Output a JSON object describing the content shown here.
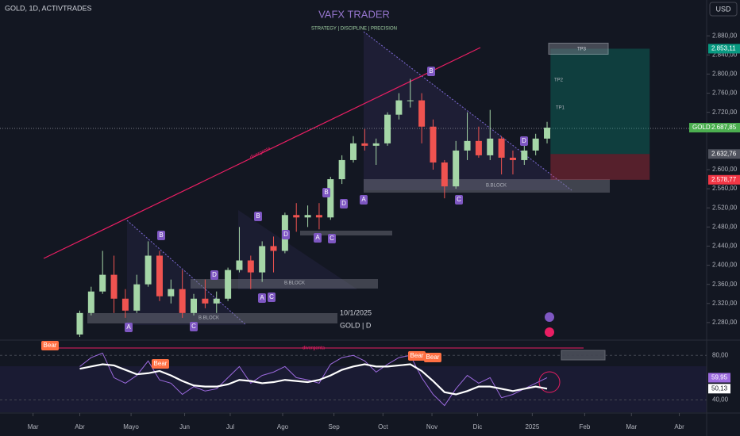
{
  "header": {
    "symbol": "GOLD, 1D, ACTIVTRADES",
    "title": "VAFX TRADER",
    "subtitle": "STRATEGY  |  DISCIPLINE  |  PRECISION",
    "currency": "USD"
  },
  "chart_data": {
    "type": "candlestick",
    "up_color": "#a5d6a7",
    "down_color": "#ef5350",
    "x": [
      0,
      1,
      2,
      3,
      4,
      5,
      6,
      7,
      8,
      9,
      10,
      11,
      12,
      13,
      14,
      15,
      16,
      17,
      18,
      19,
      20,
      21,
      22,
      23,
      24,
      25,
      26,
      27,
      28,
      29,
      30,
      31,
      32,
      33,
      34,
      35,
      36,
      37,
      38,
      39,
      40,
      41
    ],
    "open": [
      2255,
      2300,
      2345,
      2380,
      2330,
      2305,
      2360,
      2420,
      2335,
      2350,
      2300,
      2330,
      2320,
      2330,
      2390,
      2410,
      2385,
      2440,
      2430,
      2505,
      2500,
      2505,
      2500,
      2580,
      2620,
      2655,
      2650,
      2655,
      2715,
      2745,
      2745,
      2690,
      2615,
      2565,
      2640,
      2660,
      2630,
      2665,
      2625,
      2620,
      2640,
      2665
    ],
    "high": [
      2305,
      2355,
      2430,
      2420,
      2350,
      2380,
      2450,
      2430,
      2370,
      2390,
      2340,
      2370,
      2345,
      2395,
      2480,
      2420,
      2450,
      2460,
      2510,
      2530,
      2525,
      2530,
      2585,
      2630,
      2670,
      2685,
      2665,
      2720,
      2760,
      2790,
      2760,
      2705,
      2620,
      2660,
      2720,
      2690,
      2725,
      2670,
      2640,
      2665,
      2675,
      2700
    ],
    "low": [
      2250,
      2295,
      2340,
      2300,
      2290,
      2300,
      2355,
      2325,
      2320,
      2290,
      2295,
      2310,
      2300,
      2325,
      2385,
      2350,
      2365,
      2385,
      2425,
      2470,
      2480,
      2475,
      2495,
      2570,
      2615,
      2640,
      2610,
      2650,
      2705,
      2730,
      2655,
      2600,
      2540,
      2560,
      2620,
      2625,
      2620,
      2590,
      2590,
      2610,
      2630,
      2655
    ],
    "close": [
      2300,
      2345,
      2380,
      2330,
      2305,
      2360,
      2420,
      2335,
      2350,
      2300,
      2330,
      2320,
      2330,
      2390,
      2410,
      2385,
      2440,
      2430,
      2505,
      2500,
      2505,
      2500,
      2580,
      2620,
      2655,
      2650,
      2655,
      2715,
      2745,
      2745,
      2690,
      2615,
      2565,
      2640,
      2660,
      2630,
      2665,
      2625,
      2620,
      2640,
      2665,
      2687.85
    ],
    "xlim": [
      -7,
      55
    ],
    "xticks": [
      {
        "value": -4.1,
        "label": "Mar"
      },
      {
        "value": 0,
        "label": "Abr"
      },
      {
        "value": 4.5,
        "label": "Mayo"
      },
      {
        "value": 9.2,
        "label": "Jun"
      },
      {
        "value": 13.2,
        "label": "Jul"
      },
      {
        "value": 17.8,
        "label": "Ago"
      },
      {
        "value": 22.3,
        "label": "Sep"
      },
      {
        "value": 26.6,
        "label": "Oct"
      },
      {
        "value": 30.9,
        "label": "Nov"
      },
      {
        "value": 34.9,
        "label": "Dic"
      },
      {
        "value": 39.7,
        "label": "2025"
      },
      {
        "value": 44.3,
        "label": "Feb"
      },
      {
        "value": 48.4,
        "label": "Mar"
      },
      {
        "value": 52.6,
        "label": "Abr"
      }
    ],
    "ylim": [
      2245,
      2955
    ],
    "yticks": [
      {
        "value": 2880,
        "label": "2.880,00"
      },
      {
        "value": 2840,
        "label": "2.840,00"
      },
      {
        "value": 2800,
        "label": "2.800,00"
      },
      {
        "value": 2760,
        "label": "2.760,00"
      },
      {
        "value": 2720,
        "label": "2.720,00"
      },
      {
        "value": 2600,
        "label": "2.600,00"
      },
      {
        "value": 2560,
        "label": "2.560,00"
      },
      {
        "value": 2520,
        "label": "2.520,00"
      },
      {
        "value": 2480,
        "label": "2.480,00"
      },
      {
        "value": 2440,
        "label": "2.440,00"
      },
      {
        "value": 2400,
        "label": "2.400,00"
      },
      {
        "value": 2360,
        "label": "2.360,00"
      },
      {
        "value": 2320,
        "label": "2.320,00"
      },
      {
        "value": 2280,
        "label": "2.280,00"
      }
    ],
    "last": {
      "name": "GOLD",
      "value": 2687.85,
      "label": "2.687,85"
    },
    "position": {
      "target": 2853.11,
      "target_label": "2.853,11",
      "entry": 2632.76,
      "entry_label": "2.632,76",
      "stop": 2578.77,
      "stop_label": "2.578,77"
    },
    "annotations": [
      "A",
      "B",
      "C",
      "D",
      "A",
      "B",
      "C",
      "D",
      "A",
      "B",
      "C",
      "D",
      "A",
      "B",
      "C",
      "D"
    ],
    "notes": [
      "B.BLOCK",
      "B.BLOCK",
      "B.BLOCK",
      "TP1",
      "TP2",
      "TP3",
      "divergenta",
      "10/1/2025",
      "GOLD | D"
    ]
  },
  "oscillator": {
    "ylim": [
      29,
      93
    ],
    "yticks": [
      {
        "value": 80,
        "label": "80,00"
      },
      {
        "value": 40,
        "label": "40,00"
      }
    ],
    "series": [
      {
        "name": "RSI",
        "color": "#9c6ade",
        "values": [
          70,
          78,
          82,
          60,
          55,
          62,
          75,
          58,
          55,
          45,
          52,
          48,
          50,
          60,
          70,
          55,
          62,
          65,
          70,
          60,
          58,
          55,
          72,
          78,
          80,
          75,
          65,
          72,
          78,
          80,
          60,
          45,
          35,
          50,
          62,
          55,
          60,
          42,
          45,
          50,
          55,
          59.95
        ],
        "last_label": "59,95"
      },
      {
        "name": "MA",
        "color": "#ffffff",
        "values": [
          68,
          70,
          72,
          71,
          67,
          63,
          64,
          66,
          62,
          57,
          53,
          52,
          52,
          54,
          58,
          57,
          55,
          56,
          58,
          57,
          56,
          58,
          62,
          67,
          70,
          72,
          70,
          70,
          71,
          72,
          66,
          57,
          47,
          45,
          48,
          52,
          52,
          50,
          48,
          50,
          52,
          50.13
        ],
        "last_label": "50,13"
      }
    ],
    "labels": [
      "Bear",
      "Bear",
      "Bear",
      "Bear",
      "divergenta"
    ]
  }
}
